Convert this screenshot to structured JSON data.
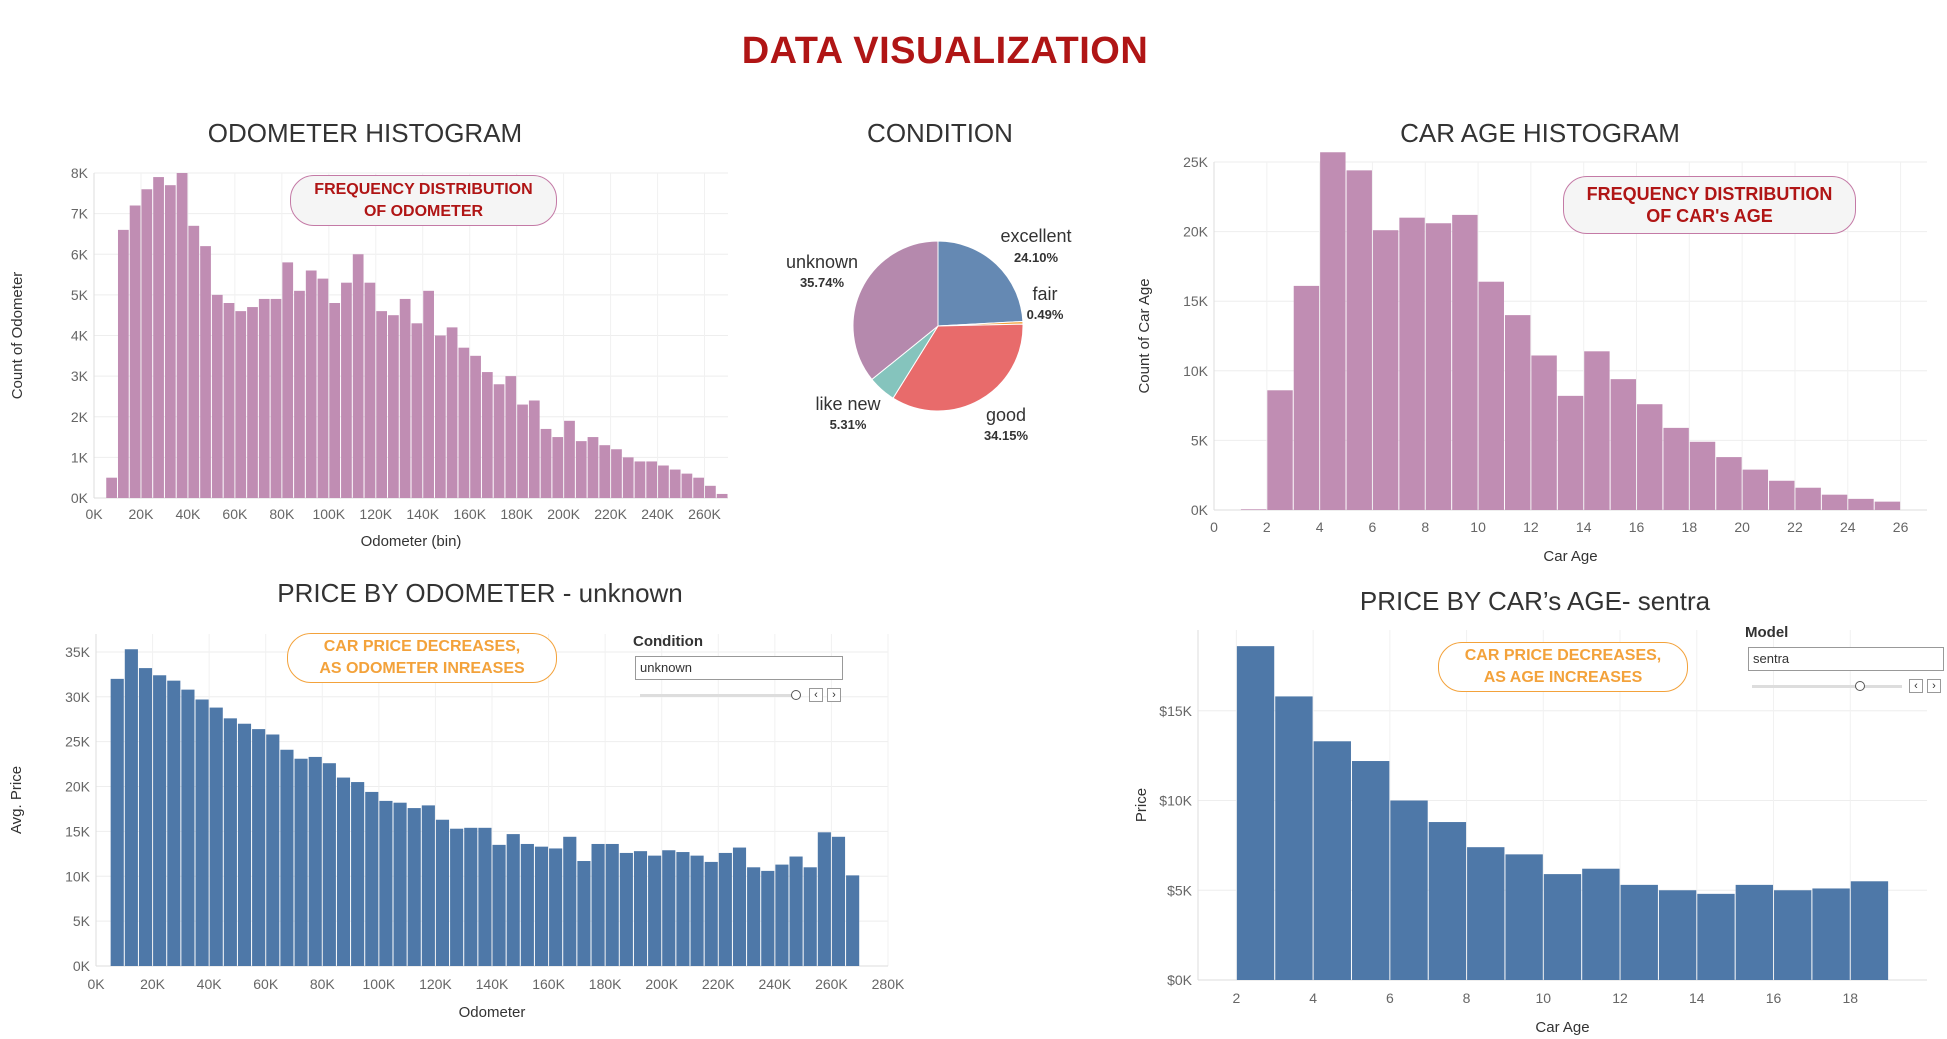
{
  "title": "DATA VISUALIZATION",
  "chart_data": [
    {
      "id": "odometer-histogram",
      "type": "bar",
      "title": "ODOMETER HISTOGRAM",
      "xlabel": "Odometer (bin)",
      "ylabel": "Count of Odometer",
      "xlim": [
        0,
        270000
      ],
      "ylim": [
        0,
        8000
      ],
      "bin_width": 5000,
      "x_ticks": [
        "0K",
        "20K",
        "40K",
        "60K",
        "80K",
        "100K",
        "120K",
        "140K",
        "160K",
        "180K",
        "200K",
        "220K",
        "240K",
        "260K"
      ],
      "y_ticks": [
        "0K",
        "1K",
        "2K",
        "3K",
        "4K",
        "5K",
        "6K",
        "7K",
        "8K"
      ],
      "annotation": [
        "FREQUENCY DISTRIBUTION",
        "OF ODOMETER"
      ],
      "bin_starts": [
        5000,
        10000,
        15000,
        20000,
        25000,
        30000,
        35000,
        40000,
        45000,
        50000,
        55000,
        60000,
        65000,
        70000,
        75000,
        80000,
        85000,
        90000,
        95000,
        100000,
        105000,
        110000,
        115000,
        120000,
        125000,
        130000,
        135000,
        140000,
        145000,
        150000,
        155000,
        160000,
        165000,
        170000,
        175000,
        180000,
        185000,
        190000,
        195000,
        200000,
        205000,
        210000,
        215000,
        220000,
        225000,
        230000,
        235000,
        240000,
        245000,
        250000,
        255000,
        260000,
        265000
      ],
      "values": [
        500,
        6600,
        7200,
        7600,
        7900,
        7700,
        8000,
        6700,
        6200,
        5000,
        4800,
        4600,
        4700,
        4900,
        4900,
        5800,
        5100,
        5600,
        5400,
        4800,
        5300,
        6000,
        5300,
        4600,
        4500,
        4900,
        4300,
        5100,
        4000,
        4200,
        3700,
        3500,
        3100,
        2800,
        3000,
        2300,
        2400,
        1700,
        1500,
        1900,
        1400,
        1500,
        1300,
        1200,
        1000,
        900,
        900,
        800,
        700,
        600,
        500,
        300,
        100
      ]
    },
    {
      "id": "condition-pie",
      "type": "pie",
      "title": "CONDITION",
      "slices": [
        {
          "label": "excellent",
          "pct": "24.10%",
          "value": 24.1,
          "color": "#6589b3"
        },
        {
          "label": "fair",
          "pct": "0.49%",
          "value": 0.49,
          "color": "#f2a23b"
        },
        {
          "label": "good",
          "pct": "34.15%",
          "value": 34.15,
          "color": "#e86b6b"
        },
        {
          "label": "like new",
          "pct": "5.31%",
          "value": 5.31,
          "color": "#85c4bd"
        },
        {
          "label": "unknown",
          "pct": "35.74%",
          "value": 35.74,
          "color": "#b589ad"
        }
      ]
    },
    {
      "id": "car-age-histogram",
      "type": "bar",
      "title": "CAR AGE HISTOGRAM",
      "xlabel": "Car Age",
      "ylabel": "Count of Car Age",
      "xlim": [
        0,
        27
      ],
      "ylim": [
        0,
        25000
      ],
      "bin_width": 1,
      "x_ticks": [
        "0",
        "2",
        "4",
        "6",
        "8",
        "10",
        "12",
        "14",
        "16",
        "18",
        "20",
        "22",
        "24",
        "26"
      ],
      "y_ticks": [
        "0K",
        "5K",
        "10K",
        "15K",
        "20K",
        "25K"
      ],
      "annotation": [
        "FREQUENCY DISTRIBUTION",
        "OF CAR's AGE"
      ],
      "bin_starts": [
        1,
        2,
        3,
        4,
        5,
        6,
        7,
        8,
        9,
        10,
        11,
        12,
        13,
        14,
        15,
        16,
        17,
        18,
        19,
        20,
        21,
        22,
        23,
        24,
        25
      ],
      "values": [
        50,
        8600,
        16100,
        25700,
        24400,
        20100,
        21000,
        20600,
        21200,
        16400,
        14000,
        11100,
        8200,
        11400,
        9400,
        7600,
        5900,
        4900,
        3800,
        2900,
        2100,
        1600,
        1100,
        800,
        600
      ]
    },
    {
      "id": "price-by-odometer",
      "type": "bar",
      "title": "PRICE BY ODOMETER -  unknown",
      "xlabel": "Odometer",
      "ylabel": "Avg. Price",
      "xlim": [
        0,
        280000
      ],
      "ylim": [
        0,
        37000
      ],
      "bin_width": 5000,
      "x_ticks": [
        "0K",
        "20K",
        "40K",
        "60K",
        "80K",
        "100K",
        "120K",
        "140K",
        "160K",
        "180K",
        "200K",
        "220K",
        "240K",
        "260K",
        "280K"
      ],
      "y_ticks": [
        "0K",
        "5K",
        "10K",
        "15K",
        "20K",
        "25K",
        "30K",
        "35K"
      ],
      "annotation": [
        "CAR PRICE DECREASES,",
        "AS ODOMETER INREASES"
      ],
      "bin_starts": [
        5000,
        10000,
        15000,
        20000,
        25000,
        30000,
        35000,
        40000,
        45000,
        50000,
        55000,
        60000,
        65000,
        70000,
        75000,
        80000,
        85000,
        90000,
        95000,
        100000,
        105000,
        110000,
        115000,
        120000,
        125000,
        130000,
        135000,
        140000,
        145000,
        150000,
        155000,
        160000,
        165000,
        170000,
        175000,
        180000,
        185000,
        190000,
        195000,
        200000,
        205000,
        210000,
        215000,
        220000,
        225000,
        230000,
        235000,
        240000,
        245000,
        250000,
        255000,
        260000,
        265000
      ],
      "values": [
        32000,
        35300,
        33200,
        32400,
        31800,
        30800,
        29700,
        28800,
        27600,
        27000,
        26400,
        25800,
        24100,
        23100,
        23300,
        22600,
        21000,
        20500,
        19400,
        18400,
        18200,
        17600,
        17900,
        16300,
        15300,
        15400,
        15400,
        13500,
        14700,
        13600,
        13300,
        13100,
        14400,
        11700,
        13600,
        13600,
        12600,
        12800,
        12300,
        12900,
        12700,
        12300,
        11600,
        12600,
        13200,
        11000,
        10600,
        11300,
        12200,
        11000,
        14900,
        14400,
        10100
      ],
      "filter": {
        "label": "Condition",
        "value": "unknown"
      }
    },
    {
      "id": "price-by-car-age",
      "type": "bar",
      "title": "PRICE BY CAR’s AGE- sentra",
      "xlabel": "Car Age",
      "ylabel": "Price",
      "xlim": [
        1,
        20
      ],
      "ylim": [
        0,
        19500
      ],
      "bin_width": 1,
      "x_ticks": [
        "2",
        "4",
        "6",
        "8",
        "10",
        "12",
        "14",
        "16",
        "18"
      ],
      "y_ticks": [
        "$0K",
        "$5K",
        "$10K",
        "$15K"
      ],
      "annotation": [
        "CAR PRICE DECREASES,",
        "AS AGE INCREASES"
      ],
      "bin_starts": [
        2,
        3,
        4,
        5,
        6,
        7,
        8,
        9,
        10,
        11,
        12,
        13,
        14,
        15,
        16,
        17,
        18
      ],
      "values": [
        18600,
        15800,
        13300,
        12200,
        10000,
        8800,
        7400,
        7000,
        5900,
        6200,
        5300,
        5000,
        4800,
        5300,
        5000,
        5100,
        5500
      ],
      "filter": {
        "label": "Model",
        "value": "sentra"
      }
    }
  ]
}
